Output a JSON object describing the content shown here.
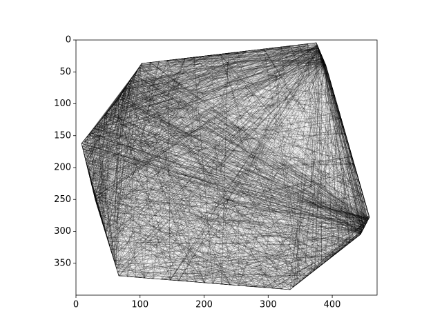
{
  "chart_data": {
    "type": "image",
    "xlim": [
      0,
      470
    ],
    "ylim": [
      400,
      0
    ],
    "xticks": [
      0,
      100,
      200,
      300,
      400
    ],
    "yticks": [
      0,
      50,
      100,
      150,
      200,
      250,
      300,
      350
    ]
  }
}
